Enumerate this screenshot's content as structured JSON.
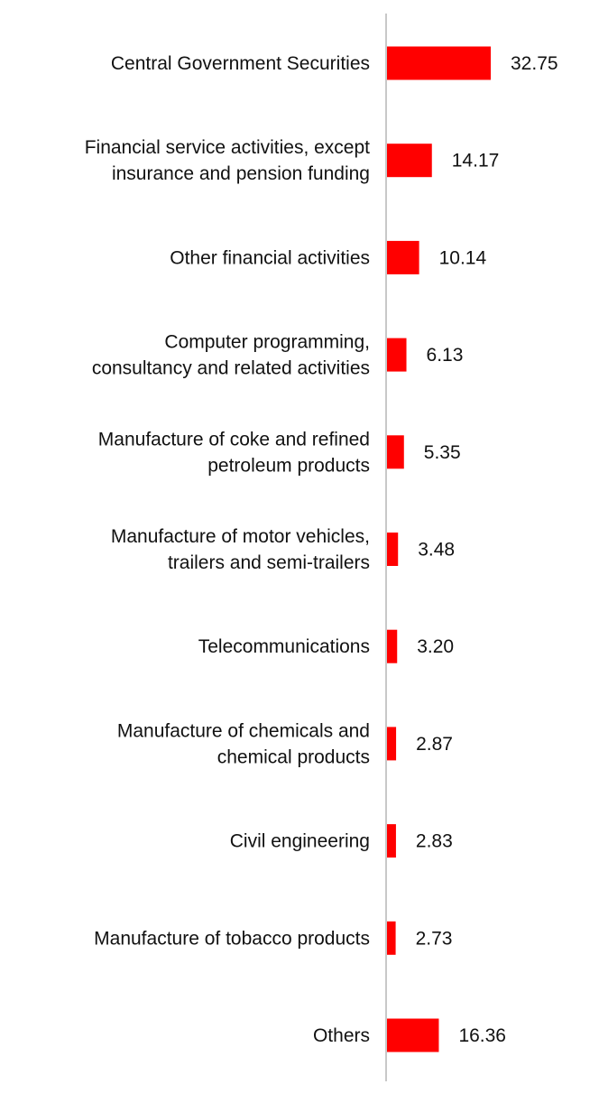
{
  "chart_data": {
    "type": "bar",
    "orientation": "horizontal",
    "title": "",
    "xlabel": "",
    "ylabel": "",
    "categories": [
      "Central Government Securities",
      "Financial service activities, except insurance and pension funding",
      "Other financial activities",
      "Computer programming, consultancy and related activities",
      "Manufacture of coke and refined petroleum products",
      "Manufacture of motor vehicles, trailers and semi-trailers",
      "Telecommunications",
      "Manufacture of chemicals and chemical products",
      "Civil engineering",
      "Manufacture of tobacco products",
      "Others"
    ],
    "category_lines": [
      [
        "Central Government Securities"
      ],
      [
        "Financial service activities, except",
        "insurance and pension funding"
      ],
      [
        "Other financial activities"
      ],
      [
        "Computer programming,",
        "consultancy and related activities"
      ],
      [
        "Manufacture of coke and refined",
        "petroleum products"
      ],
      [
        "Manufacture of motor vehicles,",
        "trailers and semi-trailers"
      ],
      [
        "Telecommunications"
      ],
      [
        "Manufacture of chemicals and",
        "chemical products"
      ],
      [
        "Civil engineering"
      ],
      [
        "Manufacture of tobacco products"
      ],
      [
        "Others"
      ]
    ],
    "values": [
      32.75,
      14.17,
      10.14,
      6.13,
      5.35,
      3.48,
      3.2,
      2.87,
      2.83,
      2.73,
      16.36
    ],
    "value_labels": [
      "32.75",
      "14.17",
      "10.14",
      "6.13",
      "5.35",
      "3.48",
      "3.20",
      "2.87",
      "2.83",
      "2.73",
      "16.36"
    ],
    "xlim": [
      0,
      36
    ],
    "grid": false,
    "legend": "none",
    "bar_color": "#ff0000",
    "axis_color": "#c8c8c8"
  }
}
